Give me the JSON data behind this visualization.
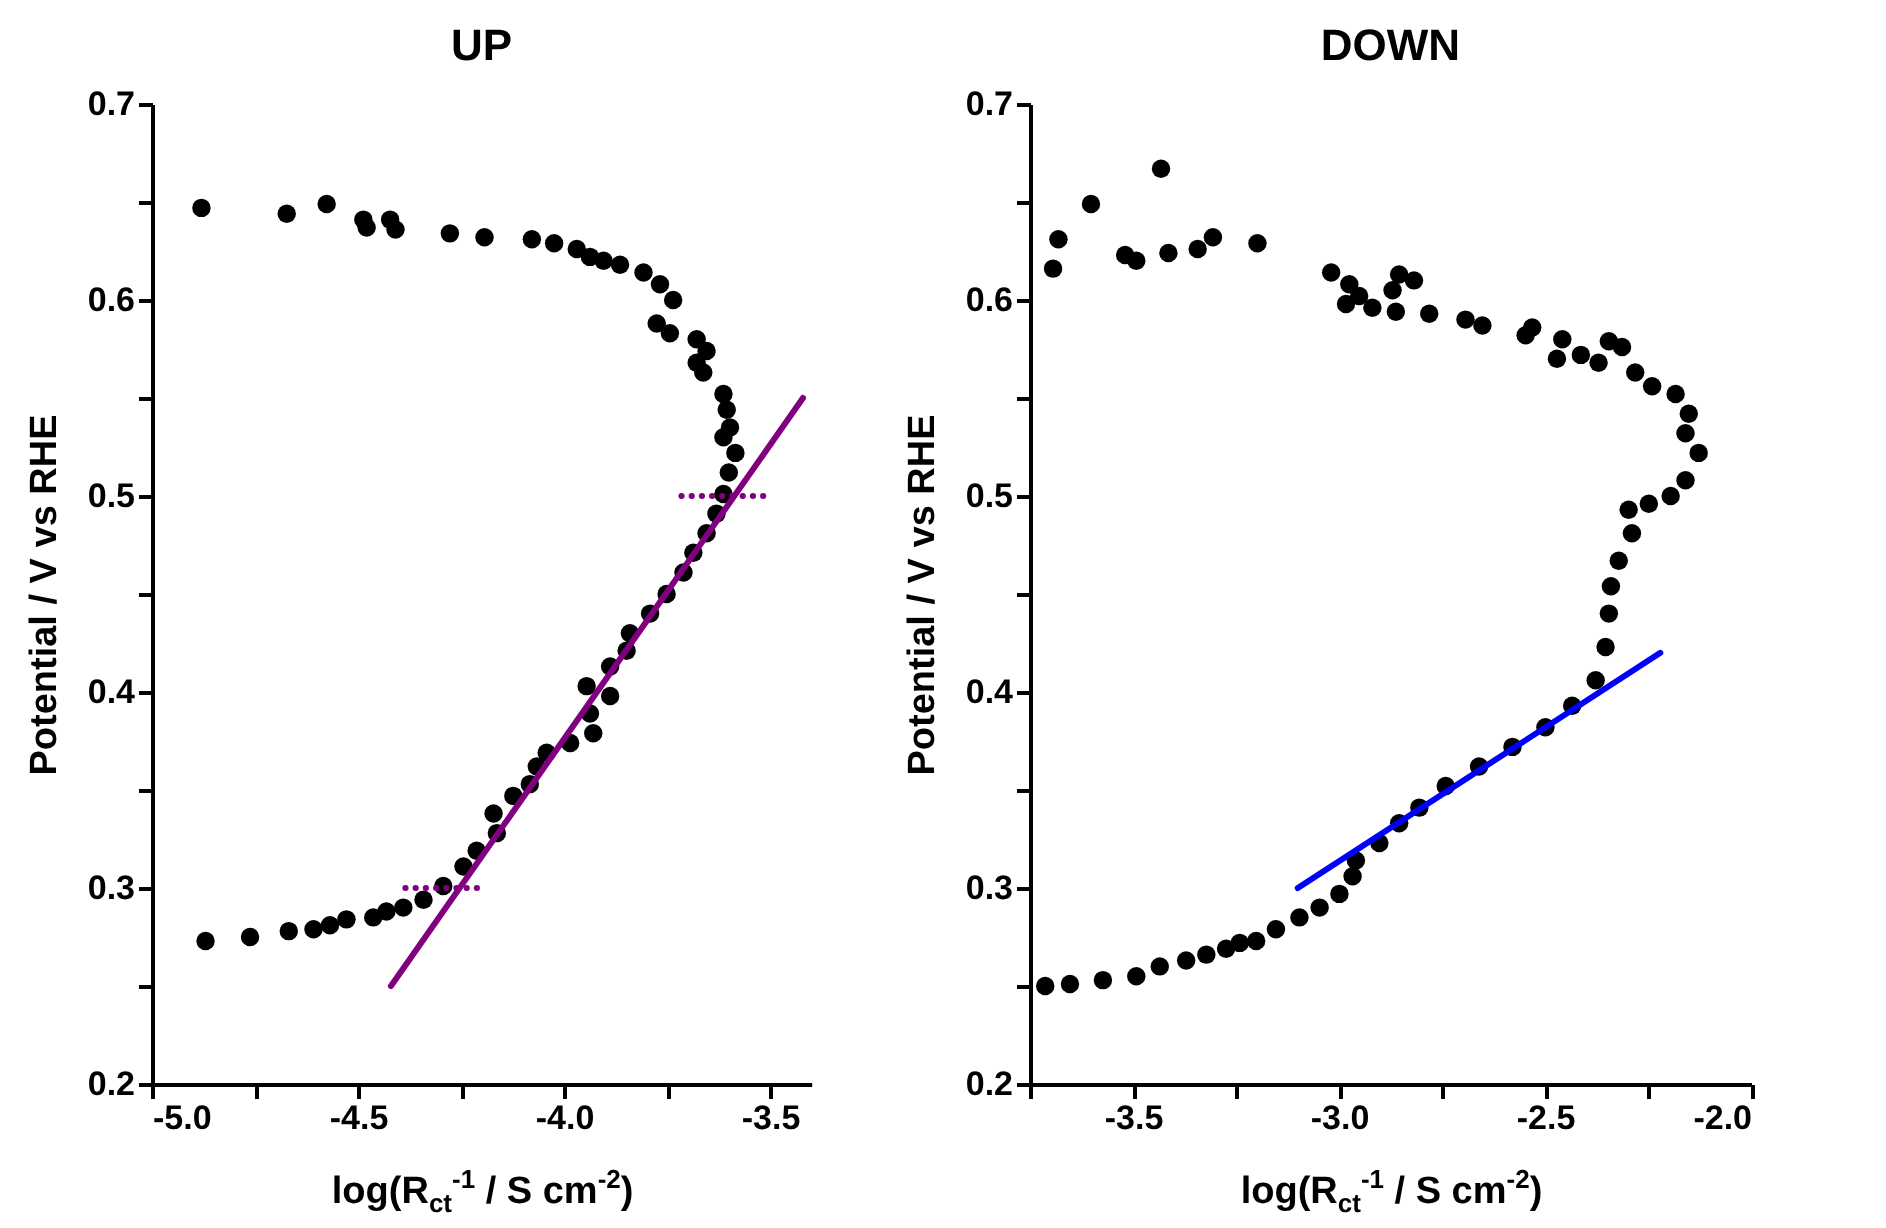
{
  "chart_data": [
    {
      "type": "scatter",
      "title": "UP",
      "xlabel": "log(R$_{ct}$$^{-1}$ / S cm$^{-2}$)",
      "ylabel": "Potential / V vs RHE",
      "xlim": [
        -5.0,
        -3.4
      ],
      "ylim": [
        0.2,
        0.7
      ],
      "xticks": [
        {
          "value": -5,
          "label": "-5.0"
        },
        {
          "value": -4.75,
          "label": null
        },
        {
          "value": -4.5,
          "label": "-4.5"
        },
        {
          "value": -4.25,
          "label": null
        },
        {
          "value": -4,
          "label": "-4.0"
        },
        {
          "value": -3.75,
          "label": null
        },
        {
          "value": -3.5,
          "label": "-3.5"
        }
      ],
      "yticks": [
        0.2,
        {
          "value": 0.25,
          "label": null
        },
        0.3,
        {
          "value": 0.35,
          "label": null
        },
        0.4,
        {
          "value": 0.45,
          "label": null
        },
        0.5,
        {
          "value": 0.55,
          "label": null
        },
        0.6,
        {
          "value": 0.65,
          "label": null
        },
        0.7
      ],
      "grid": false,
      "series": [
        {
          "marker": "circle",
          "color": "#000000",
          "x": [
            -4.88,
            -4.673,
            -4.576,
            -4.487,
            -4.479,
            -4.422,
            -4.409,
            -4.277,
            -4.193,
            -4.078,
            -4.024,
            -3.969,
            -3.937,
            -3.904,
            -3.864,
            -3.807,
            -3.767,
            -3.735,
            -3.775,
            -3.743,
            -3.678,
            -3.654,
            -3.678,
            -3.662,
            -3.613,
            -3.605,
            -3.597,
            -3.613,
            -3.584,
            -3.6,
            -3.613,
            -3.63,
            -3.654,
            -3.686,
            -3.71,
            -3.751,
            -3.791,
            -3.84,
            -3.848,
            -3.888,
            -3.945,
            -3.888,
            -3.937,
            -3.929,
            -3.985,
            -4.042,
            -4.066,
            -4.083,
            -4.123,
            -4.171,
            -4.163,
            -4.212,
            -4.244,
            -4.293,
            -4.341,
            -4.39,
            -4.431,
            -4.463,
            -4.528,
            -4.568,
            -4.608,
            -4.668,
            -4.762,
            -4.87
          ],
          "values": [
            0.647,
            0.644,
            0.649,
            0.641,
            0.637,
            0.641,
            0.636,
            0.634,
            0.632,
            0.631,
            0.629,
            0.626,
            0.622,
            0.62,
            0.618,
            0.614,
            0.608,
            0.6,
            0.588,
            0.583,
            0.58,
            0.574,
            0.568,
            0.563,
            0.552,
            0.544,
            0.535,
            0.53,
            0.522,
            0.512,
            0.501,
            0.491,
            0.481,
            0.471,
            0.461,
            0.45,
            0.44,
            0.43,
            0.421,
            0.413,
            0.403,
            0.398,
            0.389,
            0.379,
            0.374,
            0.369,
            0.362,
            0.353,
            0.347,
            0.338,
            0.328,
            0.319,
            0.311,
            0.301,
            0.294,
            0.29,
            0.288,
            0.285,
            0.284,
            0.281,
            0.279,
            0.278,
            0.275,
            0.273
          ]
        },
        {
          "type": "line",
          "color": "#800080",
          "x": [
            -4.42,
            -3.42
          ],
          "values": [
            0.25,
            0.55
          ]
        },
        {
          "type": "line",
          "line_style": "dotted",
          "color": "#800080",
          "x": [
            -3.715,
            -3.516
          ],
          "values": [
            0.5,
            0.5
          ]
        },
        {
          "type": "line",
          "line_style": "dotted",
          "color": "#800080",
          "x": [
            -4.385,
            -4.188
          ],
          "values": [
            0.3,
            0.3
          ]
        }
      ]
    },
    {
      "type": "scatter",
      "title": "DOWN",
      "xlabel": "log(R$_{ct}$$^{-1}$ / S cm$^{-2}$)",
      "ylabel": "Potential / V vs RHE",
      "xlim": [
        -3.75,
        -2.0
      ],
      "ylim": [
        0.2,
        0.7
      ],
      "xticks": [
        {
          "value": -3.75,
          "label": null
        },
        {
          "value": -3.5,
          "label": "-3.5"
        },
        {
          "value": -3.25,
          "label": null
        },
        {
          "value": -3,
          "label": "-3.0"
        },
        {
          "value": -2.75,
          "label": null
        },
        {
          "value": -2.5,
          "label": "-2.5"
        },
        {
          "value": -2.25,
          "label": null
        },
        {
          "value": -2,
          "label": "-2.0"
        }
      ],
      "yticks": [
        0.2,
        {
          "value": 0.25,
          "label": null
        },
        0.3,
        {
          "value": 0.35,
          "label": null
        },
        0.4,
        {
          "value": 0.45,
          "label": null
        },
        0.5,
        {
          "value": 0.55,
          "label": null
        },
        0.6,
        {
          "value": 0.65,
          "label": null
        },
        0.7
      ],
      "grid": false,
      "series": [
        {
          "marker": "circle",
          "color": "#000000",
          "x": [
            -3.713,
            -3.653,
            -3.573,
            -3.492,
            -3.435,
            -3.371,
            -3.322,
            -3.274,
            -3.241,
            -3.201,
            -3.153,
            -3.096,
            -3.047,
            -2.999,
            -2.967,
            -2.959,
            -2.902,
            -2.854,
            -2.805,
            -2.741,
            -2.66,
            -2.579,
            -2.499,
            -2.434,
            -2.377,
            -2.353,
            -2.345,
            -2.34,
            -2.321,
            -2.289,
            -2.297,
            -2.248,
            -2.195,
            -2.159,
            -2.127,
            -2.159,
            -2.151,
            -2.183,
            -2.24,
            -2.281,
            -2.313,
            -2.345,
            -2.37,
            -2.413,
            -2.471,
            -2.458,
            -2.531,
            -2.547,
            -2.652,
            -2.693,
            -2.781,
            -2.862,
            -2.919,
            -2.983,
            -2.951,
            -2.975,
            -3.019,
            -2.87,
            -2.854,
            -2.818,
            -3.198,
            -3.306,
            -3.343,
            -3.414,
            -3.492,
            -3.519,
            -3.432,
            -3.602,
            -3.681,
            -3.694
          ],
          "values": [
            0.25,
            0.251,
            0.253,
            0.255,
            0.26,
            0.263,
            0.266,
            0.269,
            0.272,
            0.273,
            0.279,
            0.285,
            0.29,
            0.297,
            0.306,
            0.314,
            0.323,
            0.333,
            0.341,
            0.352,
            0.362,
            0.372,
            0.382,
            0.393,
            0.406,
            0.423,
            0.44,
            0.454,
            0.467,
            0.481,
            0.493,
            0.496,
            0.5,
            0.508,
            0.522,
            0.532,
            0.542,
            0.552,
            0.556,
            0.563,
            0.576,
            0.579,
            0.568,
            0.572,
            0.57,
            0.58,
            0.586,
            0.582,
            0.587,
            0.59,
            0.593,
            0.594,
            0.596,
            0.598,
            0.602,
            0.608,
            0.614,
            0.605,
            0.613,
            0.61,
            0.629,
            0.632,
            0.626,
            0.624,
            0.62,
            0.623,
            0.667,
            0.649,
            0.631,
            0.616
          ]
        },
        {
          "type": "line",
          "color": "#0000ff",
          "x": [
            -3.1,
            -2.22
          ],
          "values": [
            0.3,
            0.42
          ]
        }
      ]
    }
  ]
}
